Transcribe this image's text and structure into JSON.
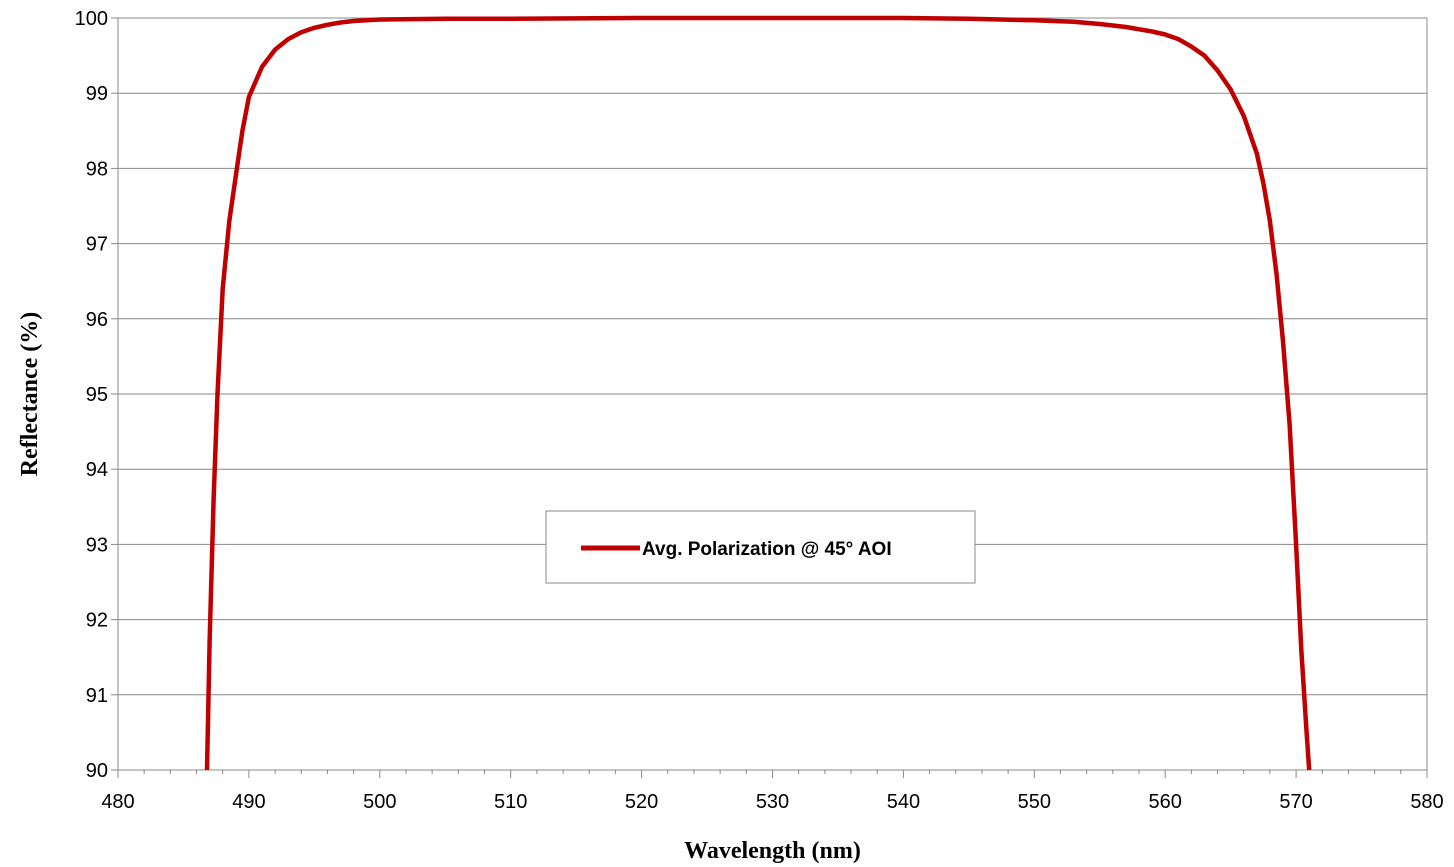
{
  "chart_data": {
    "type": "line",
    "title": "",
    "xlabel": "Wavelength (nm)",
    "ylabel": "Reflectance (%)",
    "xlim": [
      480,
      580
    ],
    "ylim": [
      90,
      100
    ],
    "x_ticks": [
      480,
      490,
      500,
      510,
      520,
      530,
      540,
      550,
      560,
      570,
      580
    ],
    "y_ticks": [
      90,
      91,
      92,
      93,
      94,
      95,
      96,
      97,
      98,
      99,
      100
    ],
    "x_tick_labels": [
      "480",
      "490",
      "500",
      "510",
      "520",
      "530",
      "540",
      "550",
      "560",
      "570",
      "580"
    ],
    "y_tick_labels": [
      "90",
      "91",
      "92",
      "93",
      "94",
      "95",
      "96",
      "97",
      "98",
      "99",
      "100"
    ],
    "grid": "horizontal",
    "legend": {
      "position": "center",
      "entries": [
        "Avg. Polarization @ 45° AOI"
      ]
    },
    "colors": {
      "series": "#c00000",
      "grid": "#888888",
      "axis": "#888888"
    },
    "series": [
      {
        "name": "Avg. Polarization @ 45° AOI",
        "x": [
          486.8,
          487.0,
          487.3,
          487.6,
          488.0,
          488.5,
          489.0,
          489.5,
          490.0,
          491.0,
          492.0,
          493.0,
          494.0,
          495.0,
          496.0,
          497.0,
          498.0,
          500.0,
          505.0,
          510.0,
          520.0,
          530.0,
          540.0,
          545.0,
          550.0,
          553.0,
          555.0,
          557.0,
          559.0,
          560.0,
          561.0,
          562.0,
          563.0,
          564.0,
          565.0,
          566.0,
          567.0,
          567.5,
          568.0,
          568.5,
          569.0,
          569.5,
          570.0,
          570.4,
          570.8,
          571.0
        ],
        "y": [
          90.0,
          91.7,
          93.6,
          95.0,
          96.4,
          97.3,
          97.9,
          98.5,
          98.95,
          99.35,
          99.58,
          99.72,
          99.81,
          99.87,
          99.91,
          99.94,
          99.96,
          99.98,
          99.99,
          99.99,
          100.0,
          100.0,
          100.0,
          99.99,
          99.97,
          99.95,
          99.92,
          99.88,
          99.82,
          99.78,
          99.72,
          99.62,
          99.5,
          99.3,
          99.05,
          98.7,
          98.2,
          97.8,
          97.3,
          96.6,
          95.7,
          94.6,
          93.0,
          91.6,
          90.5,
          90.0
        ]
      }
    ]
  }
}
